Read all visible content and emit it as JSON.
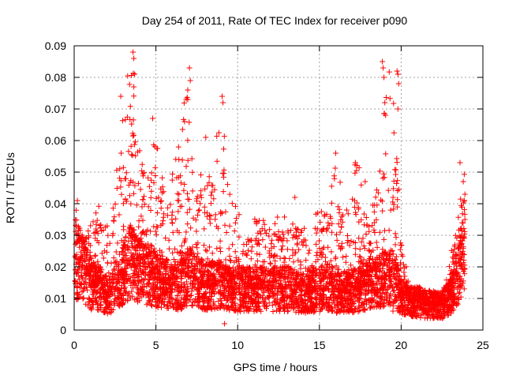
{
  "chart_data": {
    "type": "scatter",
    "title": "Day 254 of 2011, Rate Of TEC Index for receiver p090",
    "xlabel": "GPS time / hours",
    "ylabel": "ROTI / TECUs",
    "xlim": [
      0,
      25
    ],
    "ylim": [
      0,
      0.09
    ],
    "xticks": [
      0,
      5,
      10,
      15,
      20,
      25
    ],
    "xtick_labels": [
      "0",
      "5",
      "10",
      "15",
      "20",
      "25"
    ],
    "yticks": [
      0,
      0.01,
      0.02,
      0.03,
      0.04,
      0.05,
      0.06,
      0.07,
      0.08,
      0.09
    ],
    "ytick_labels": [
      "0",
      "0.01",
      "0.02",
      "0.03",
      "0.04",
      "0.05",
      "0.06",
      "0.07",
      "0.08",
      "0.09"
    ],
    "grid": true,
    "legend": "none",
    "marker": "plus",
    "series_color": "#ff0000",
    "envelope_x": [
      0,
      0.5,
      1,
      1.5,
      2,
      2.5,
      3,
      3.5,
      4,
      4.5,
      5,
      5.5,
      6,
      6.5,
      7,
      7.5,
      8,
      8.5,
      9,
      9.5,
      10,
      10.5,
      11,
      11.5,
      12,
      12.5,
      13,
      13.5,
      14,
      14.5,
      15,
      15.5,
      16,
      16.5,
      17,
      17.5,
      18,
      18.5,
      19,
      19.5,
      20,
      20.5,
      21,
      21.5,
      22,
      22.5,
      23,
      23.5,
      24
    ],
    "envelope_typical": [
      0.022,
      0.02,
      0.014,
      0.014,
      0.011,
      0.013,
      0.018,
      0.022,
      0.019,
      0.017,
      0.016,
      0.015,
      0.014,
      0.014,
      0.017,
      0.015,
      0.014,
      0.014,
      0.014,
      0.013,
      0.013,
      0.013,
      0.013,
      0.013,
      0.013,
      0.013,
      0.013,
      0.012,
      0.012,
      0.012,
      0.013,
      0.014,
      0.012,
      0.012,
      0.012,
      0.013,
      0.014,
      0.015,
      0.016,
      0.017,
      0.011,
      0.009,
      0.009,
      0.008,
      0.008,
      0.008,
      0.01,
      0.018,
      0.03
    ],
    "envelope_peak": [
      0.041,
      0.03,
      0.034,
      0.04,
      0.033,
      0.05,
      0.074,
      0.088,
      0.06,
      0.05,
      0.067,
      0.045,
      0.05,
      0.065,
      0.083,
      0.055,
      0.045,
      0.055,
      0.074,
      0.045,
      0.04,
      0.033,
      0.037,
      0.035,
      0.033,
      0.038,
      0.036,
      0.043,
      0.034,
      0.034,
      0.039,
      0.04,
      0.056,
      0.04,
      0.053,
      0.052,
      0.038,
      0.05,
      0.085,
      0.082,
      0.03,
      0.015,
      0.014,
      0.013,
      0.012,
      0.011,
      0.022,
      0.042,
      0.053
    ],
    "notable_points": [
      {
        "x": 0.2,
        "y": 0.041
      },
      {
        "x": 2.85,
        "y": 0.074
      },
      {
        "x": 3.6,
        "y": 0.088
      },
      {
        "x": 3.65,
        "y": 0.086
      },
      {
        "x": 3.7,
        "y": 0.081
      },
      {
        "x": 3.65,
        "y": 0.077
      },
      {
        "x": 4.8,
        "y": 0.067
      },
      {
        "x": 6.75,
        "y": 0.066
      },
      {
        "x": 6.95,
        "y": 0.076
      },
      {
        "x": 6.95,
        "y": 0.073
      },
      {
        "x": 7.05,
        "y": 0.083
      },
      {
        "x": 7.1,
        "y": 0.079
      },
      {
        "x": 9.05,
        "y": 0.074
      },
      {
        "x": 9.1,
        "y": 0.072
      },
      {
        "x": 8.05,
        "y": 0.061
      },
      {
        "x": 13.5,
        "y": 0.042
      },
      {
        "x": 16.0,
        "y": 0.056
      },
      {
        "x": 17.2,
        "y": 0.053
      },
      {
        "x": 17.8,
        "y": 0.047
      },
      {
        "x": 18.85,
        "y": 0.085
      },
      {
        "x": 18.9,
        "y": 0.083
      },
      {
        "x": 18.95,
        "y": 0.08
      },
      {
        "x": 19.0,
        "y": 0.072
      },
      {
        "x": 19.05,
        "y": 0.068
      },
      {
        "x": 19.75,
        "y": 0.082
      },
      {
        "x": 19.8,
        "y": 0.081
      },
      {
        "x": 19.85,
        "y": 0.078
      },
      {
        "x": 19.8,
        "y": 0.07
      },
      {
        "x": 23.6,
        "y": 0.053
      },
      {
        "x": 23.8,
        "y": 0.047
      },
      {
        "x": 23.9,
        "y": 0.043
      },
      {
        "x": 9.2,
        "y": 0.002
      },
      {
        "x": 19.5,
        "y": 0.006
      }
    ],
    "approx_point_count": 5000
  }
}
